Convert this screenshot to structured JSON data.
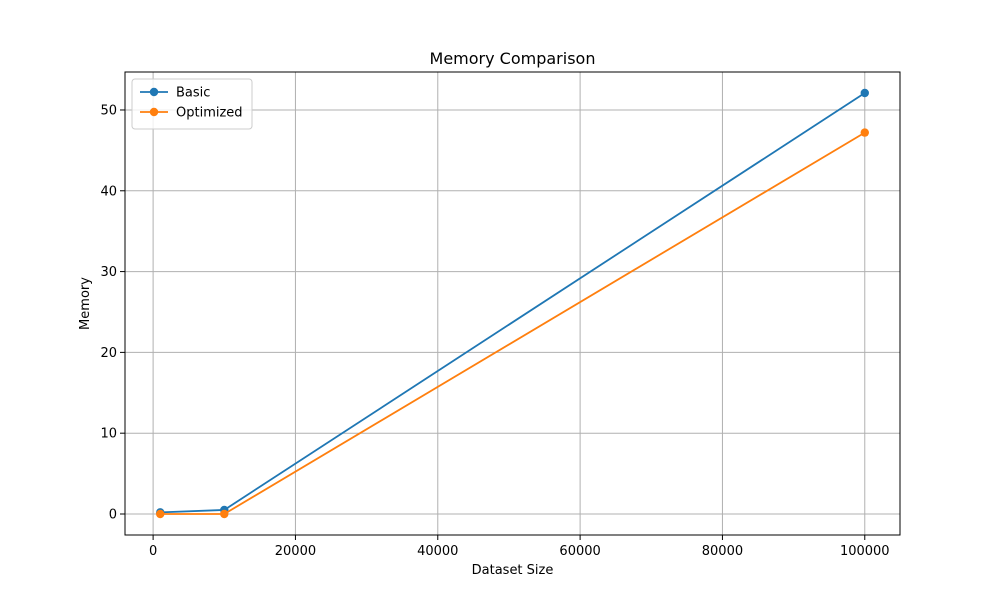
{
  "chart_data": {
    "type": "line",
    "title": "Memory Comparison",
    "xlabel": "Dataset Size",
    "ylabel": "Memory",
    "xlim": [
      -3950,
      104950
    ],
    "ylim": [
      -2.6,
      54.7
    ],
    "xticks": [
      0,
      20000,
      40000,
      60000,
      80000,
      100000
    ],
    "yticks": [
      0,
      10,
      20,
      30,
      40,
      50
    ],
    "grid": true,
    "legend_position": "top-left",
    "series": [
      {
        "name": "Basic",
        "color": "#1f77b4",
        "marker": "circle",
        "x": [
          1000,
          10000,
          100000
        ],
        "y": [
          0.2,
          0.5,
          52.1
        ]
      },
      {
        "name": "Optimized",
        "color": "#ff7f0e",
        "marker": "circle",
        "x": [
          1000,
          10000,
          100000
        ],
        "y": [
          0.0,
          0.0,
          47.2
        ]
      }
    ]
  }
}
